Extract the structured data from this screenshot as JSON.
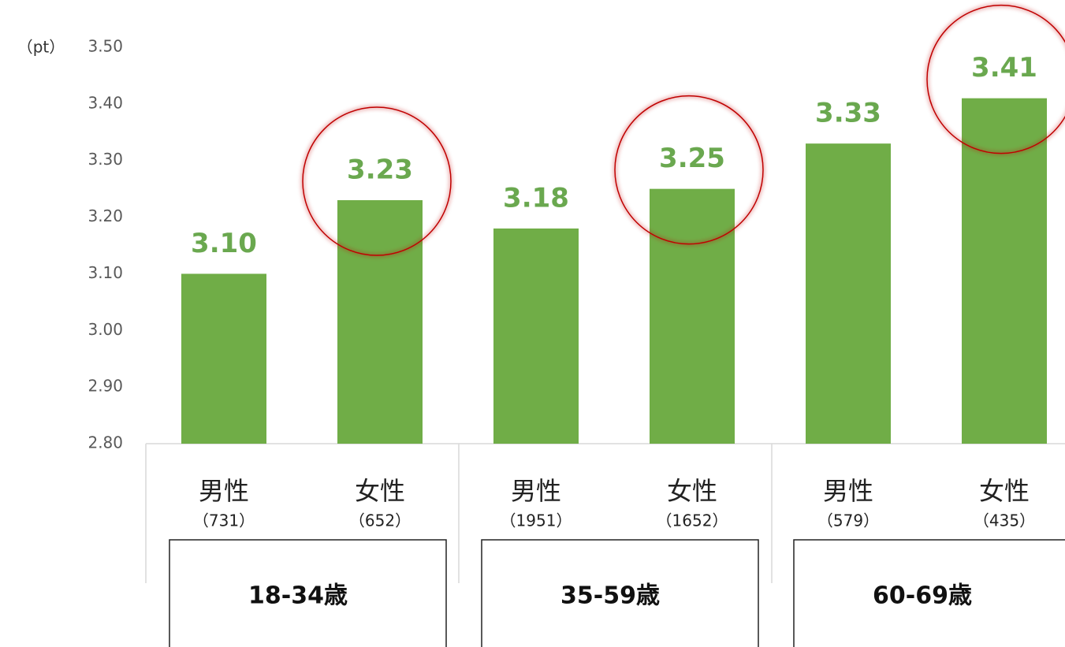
{
  "chart_data": {
    "type": "bar",
    "y_axis_label": "（pt）",
    "categories": [
      "男性",
      "女性",
      "男性",
      "女性",
      "男性",
      "女性"
    ],
    "sample_sizes": [
      "（731）",
      "（652）",
      "（1951）",
      "（1652）",
      "（579）",
      "（435）"
    ],
    "groups": [
      "18-34歳",
      "35-59歳",
      "60-69歳"
    ],
    "values": [
      3.1,
      3.23,
      3.18,
      3.25,
      3.33,
      3.41
    ],
    "value_labels": [
      "3.10",
      "3.23",
      "3.18",
      "3.25",
      "3.33",
      "3.41"
    ],
    "color": "#70ad47",
    "highlight_color": "#c00000",
    "highlighted": [
      1,
      3,
      5
    ],
    "ylim": [
      2.8,
      3.5
    ],
    "yticks": [
      {
        "value": 2.8,
        "label": "2.80"
      },
      {
        "value": 2.9,
        "label": "2.90"
      },
      {
        "value": 3,
        "label": "3.00"
      },
      {
        "value": 3.1,
        "label": "3.10"
      },
      {
        "value": 3.2,
        "label": "3.20"
      },
      {
        "value": 3.3,
        "label": "3.30"
      },
      {
        "value": 3.4,
        "label": "3.40"
      },
      {
        "value": 3.5,
        "label": "3.50"
      }
    ]
  }
}
